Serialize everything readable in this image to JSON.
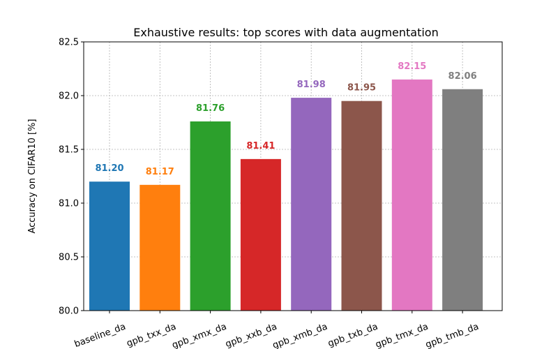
{
  "chart_data": {
    "type": "bar",
    "title": "Exhaustive results: top scores with data augmentation",
    "xlabel": "",
    "ylabel": "Accuracy on CIFAR10 [%]",
    "categories": [
      "baseline_da",
      "gpb_txx_da",
      "gpb_xmx_da",
      "gpb_xxb_da",
      "gpb_xmb_da",
      "gpb_txb_da",
      "gpb_tmx_da",
      "gpb_tmb_da"
    ],
    "values": [
      81.2,
      81.17,
      81.76,
      81.41,
      81.98,
      81.95,
      82.15,
      82.06
    ],
    "data_labels": [
      "81.20",
      "81.17",
      "81.76",
      "81.41",
      "81.98",
      "81.95",
      "82.15",
      "82.06"
    ],
    "colors": [
      "#1f77b4",
      "#ff7f0e",
      "#2ca02c",
      "#d62728",
      "#9467bd",
      "#8c564b",
      "#e377c2",
      "#7f7f7f"
    ],
    "ylim": [
      80.0,
      82.5
    ],
    "yticks": [
      "80.0",
      "80.5",
      "81.0",
      "81.5",
      "82.0",
      "82.5"
    ],
    "ytick_values": [
      80.0,
      80.5,
      81.0,
      81.5,
      82.0,
      82.5
    ],
    "grid": true,
    "xtick_rotation": "slanted"
  }
}
